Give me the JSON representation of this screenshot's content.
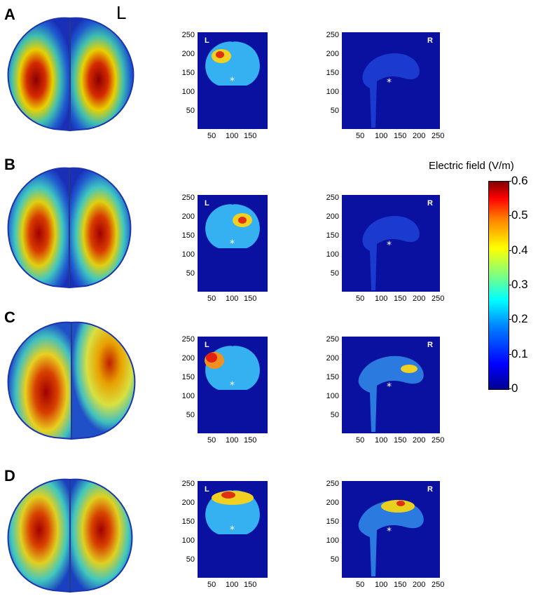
{
  "top_label": "L",
  "panels": [
    {
      "label": "A",
      "cor_letter": "L",
      "sag_letter": "R"
    },
    {
      "label": "B",
      "cor_letter": "L",
      "sag_letter": "R"
    },
    {
      "label": "C",
      "cor_letter": "L",
      "sag_letter": "R"
    },
    {
      "label": "D",
      "cor_letter": "L",
      "sag_letter": "R"
    }
  ],
  "coronal_axis": {
    "y_ticks": [
      "250",
      "200",
      "150",
      "100",
      "50"
    ],
    "x_ticks": [
      "50",
      "100",
      "150"
    ]
  },
  "sagittal_axis": {
    "y_ticks": [
      "250",
      "200",
      "150",
      "100",
      "50"
    ],
    "x_ticks": [
      "50",
      "100",
      "150",
      "200",
      "250"
    ]
  },
  "colorbar": {
    "title": "Electric field (V/m)",
    "ticks": [
      "0.6",
      "0.5",
      "0.4",
      "0.3",
      "0.2",
      "0.1",
      "0"
    ]
  },
  "colors": {
    "background_blue": "#0a10a0"
  }
}
